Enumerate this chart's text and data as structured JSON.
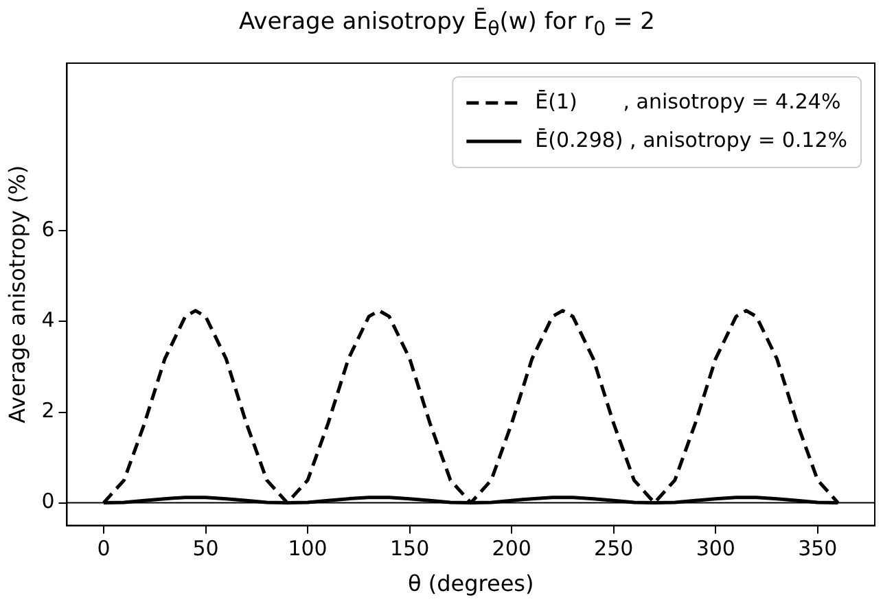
{
  "chart_data": {
    "type": "line",
    "title": "Average anisotropy Ē$_{θ}$(w) for r$_{0}$ = 2",
    "xlabel": "θ (degrees)",
    "ylabel": "Average anisotropy (%)",
    "x": [
      0,
      10,
      20,
      30,
      40,
      45,
      50,
      60,
      70,
      80,
      90,
      100,
      110,
      120,
      130,
      135,
      140,
      150,
      160,
      170,
      180,
      190,
      200,
      210,
      220,
      225,
      230,
      240,
      250,
      260,
      270,
      280,
      290,
      300,
      310,
      315,
      320,
      330,
      340,
      350,
      360
    ],
    "series": [
      {
        "name": "Ē(1)       , anisotropy = 4.24%",
        "color": "#000000",
        "line_style": "dashed",
        "values": [
          0,
          0.5,
          1.75,
          3.18,
          4.11,
          4.24,
          4.11,
          3.18,
          1.75,
          0.5,
          0,
          0.5,
          1.75,
          3.18,
          4.11,
          4.24,
          4.11,
          3.18,
          1.75,
          0.5,
          0,
          0.5,
          1.75,
          3.18,
          4.11,
          4.24,
          4.11,
          3.18,
          1.75,
          0.5,
          0,
          0.5,
          1.75,
          3.18,
          4.11,
          4.24,
          4.11,
          3.18,
          1.75,
          0.5,
          0
        ]
      },
      {
        "name": "Ē(0.298) , anisotropy = 0.12%",
        "color": "#000000",
        "line_style": "solid",
        "values": [
          0,
          0.01,
          0.05,
          0.09,
          0.12,
          0.12,
          0.12,
          0.09,
          0.05,
          0.01,
          0,
          0.01,
          0.05,
          0.09,
          0.12,
          0.12,
          0.12,
          0.09,
          0.05,
          0.01,
          0,
          0.01,
          0.05,
          0.09,
          0.12,
          0.12,
          0.12,
          0.09,
          0.05,
          0.01,
          0,
          0.01,
          0.05,
          0.09,
          0.12,
          0.12,
          0.12,
          0.09,
          0.05,
          0.01,
          0
        ]
      }
    ],
    "xlim": [
      -18,
      378
    ],
    "xticks": [
      0,
      50,
      100,
      150,
      200,
      250,
      300,
      350
    ],
    "ylim": [
      -0.5,
      9.7
    ],
    "yticks": [
      0,
      2,
      4,
      6
    ],
    "ref_lines": [
      {
        "axis": "y",
        "value": 0,
        "color": "#000000"
      }
    ],
    "grid": false,
    "legend": "top right",
    "marker": "none"
  }
}
